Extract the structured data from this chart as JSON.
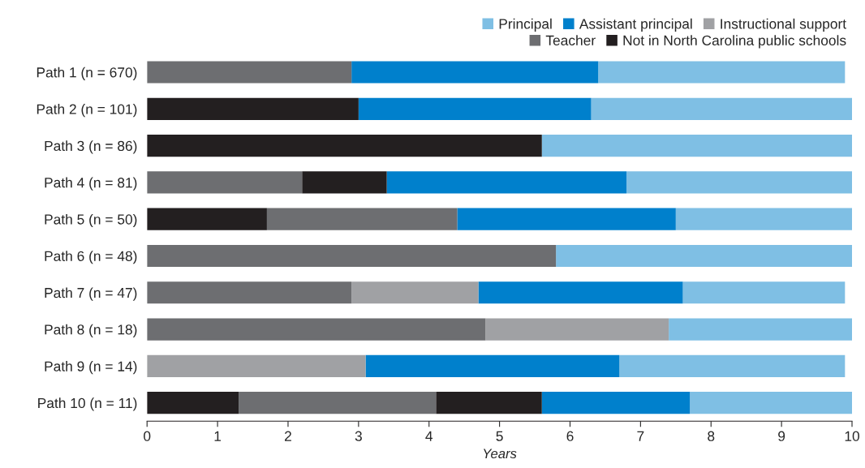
{
  "chart_data": {
    "type": "bar",
    "orientation": "horizontal",
    "xlabel": "Years",
    "categories": [
      "Path 1 (n = 670)",
      "Path 2 (n = 101)",
      "Path 3 (n = 86)",
      "Path 4 (n = 81)",
      "Path 5 (n = 50)",
      "Path 6 (n = 48)",
      "Path 7 (n = 47)",
      "Path 8 (n = 18)",
      "Path 9 (n = 14)",
      "Path 10 (n = 11)"
    ],
    "series": [
      {
        "name": "Principal",
        "color": "#7fbfe4",
        "base": [
          6.4,
          6.3,
          5.6,
          6.8,
          7.5,
          5.8,
          7.6,
          7.4,
          6.7,
          7.7
        ],
        "values": [
          3.5,
          3.7,
          4.4,
          3.2,
          2.5,
          4.2,
          2.3,
          2.6,
          3.2,
          2.3
        ]
      },
      {
        "name": "Assistant principal",
        "color": "#0080cc",
        "base": [
          2.9,
          3.0,
          null,
          3.4,
          4.4,
          null,
          4.7,
          null,
          3.1,
          5.6
        ],
        "values": [
          3.5,
          3.3,
          null,
          3.4,
          3.1,
          null,
          2.9,
          null,
          3.6,
          2.1
        ]
      },
      {
        "name": "Instructional support",
        "color": "#a0a1a4",
        "base": [
          null,
          null,
          null,
          null,
          null,
          null,
          2.9,
          4.8,
          0,
          null
        ],
        "values": [
          null,
          null,
          null,
          null,
          null,
          null,
          1.8,
          2.6,
          3.1,
          null
        ]
      },
      {
        "name": "Teacher",
        "color": "#6d6e71",
        "base": [
          0,
          null,
          null,
          0,
          1.7,
          0,
          0,
          0,
          null,
          1.3
        ],
        "values": [
          2.9,
          null,
          null,
          2.2,
          2.7,
          5.8,
          2.9,
          4.8,
          null,
          2.8
        ]
      },
      {
        "name": "Not in North Carolina public schools",
        "color": "#231f20",
        "base": [
          null,
          0,
          0,
          2.2,
          0,
          null,
          null,
          null,
          null,
          0
        ],
        "values": [
          null,
          3.0,
          5.6,
          1.2,
          1.7,
          null,
          null,
          null,
          null,
          1.3
        ]
      },
      {
        "color": "#231f20",
        "base": [
          null,
          null,
          null,
          null,
          null,
          null,
          null,
          null,
          null,
          4.1
        ],
        "values": [
          null,
          null,
          null,
          null,
          null,
          null,
          null,
          null,
          null,
          1.5
        ]
      }
    ],
    "xlim": [
      0,
      10
    ],
    "xticks": [
      0,
      1,
      2,
      3,
      4,
      5,
      6,
      7,
      8,
      9,
      10
    ],
    "legend": "top right"
  }
}
